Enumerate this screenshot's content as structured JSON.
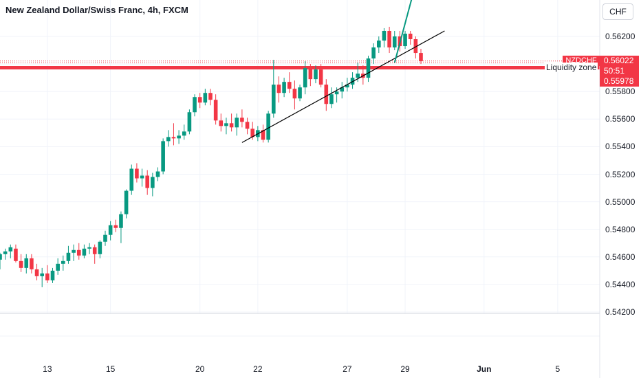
{
  "header": {
    "title": "New Zealand Dollar/Swiss Franc, 4h, FXCM",
    "currency": "CHF"
  },
  "price_tags": {
    "symbol": "NZDCHF",
    "last_price": "0.56022",
    "countdown": "50:51",
    "zone_price": "0.55978"
  },
  "annotations": {
    "liquidity_zone_label": "Liquidity zone"
  },
  "colors": {
    "up": "#089981",
    "down": "#f23645",
    "zone": "#f23645",
    "arrow": "#089981",
    "trendline": "#000000"
  },
  "chart_data": {
    "type": "candlestick",
    "symbol": "NZDCHF",
    "timeframe": "4h",
    "y_ticks": [
      "0.56200",
      "0.56000",
      "0.55800",
      "0.55600",
      "0.55400",
      "0.55200",
      "0.55000",
      "0.54800",
      "0.54600",
      "0.54400",
      "0.54200"
    ],
    "y_tick_values": [
      0.562,
      0.56,
      0.558,
      0.556,
      0.554,
      0.552,
      0.55,
      0.548,
      0.546,
      0.544,
      0.542
    ],
    "ylim": [
      0.5418,
      0.5644
    ],
    "x_ticks": [
      "13",
      "15",
      "20",
      "22",
      "27",
      "29",
      "Jun",
      "5"
    ],
    "x_tick_index": [
      9,
      21,
      38,
      49,
      66,
      77,
      92,
      106
    ],
    "liquidity_zone_price": 0.55978,
    "last_price": 0.56022,
    "trendline": [
      {
        "index": 46,
        "price": 0.5543
      },
      {
        "index": 84.5,
        "price": 0.5624
      }
    ],
    "projection_arrow": [
      {
        "index": 75,
        "price": 0.5601
      },
      {
        "index": 79,
        "price": 0.5658
      }
    ],
    "candles": [
      [
        0.5458,
        0.5463,
        0.5451,
        0.5462
      ],
      [
        0.5462,
        0.5466,
        0.5458,
        0.5464
      ],
      [
        0.5464,
        0.5469,
        0.5459,
        0.5467
      ],
      [
        0.5466,
        0.5469,
        0.5456,
        0.5457
      ],
      [
        0.5457,
        0.5462,
        0.5449,
        0.5452
      ],
      [
        0.5452,
        0.5462,
        0.5448,
        0.5459
      ],
      [
        0.5459,
        0.5462,
        0.5448,
        0.5451
      ],
      [
        0.5451,
        0.5455,
        0.5443,
        0.5446
      ],
      [
        0.5446,
        0.5452,
        0.5438,
        0.5448
      ],
      [
        0.5448,
        0.5454,
        0.5441,
        0.5443
      ],
      [
        0.5443,
        0.5452,
        0.5441,
        0.545
      ],
      [
        0.545,
        0.5459,
        0.5447,
        0.5455
      ],
      [
        0.5455,
        0.5461,
        0.545,
        0.5457
      ],
      [
        0.5457,
        0.5468,
        0.5455,
        0.5463
      ],
      [
        0.5463,
        0.5469,
        0.5457,
        0.5465
      ],
      [
        0.5465,
        0.547,
        0.5458,
        0.5461
      ],
      [
        0.5461,
        0.5469,
        0.5459,
        0.5466
      ],
      [
        0.5466,
        0.547,
        0.5462,
        0.5467
      ],
      [
        0.5467,
        0.5469,
        0.5455,
        0.5462
      ],
      [
        0.5462,
        0.5472,
        0.5459,
        0.5471
      ],
      [
        0.5471,
        0.5479,
        0.5468,
        0.5476
      ],
      [
        0.5476,
        0.5486,
        0.5472,
        0.5483
      ],
      [
        0.5483,
        0.5487,
        0.5478,
        0.5481
      ],
      [
        0.5481,
        0.5493,
        0.547,
        0.5491
      ],
      [
        0.5491,
        0.5509,
        0.5488,
        0.5508
      ],
      [
        0.5508,
        0.5527,
        0.5505,
        0.5524
      ],
      [
        0.5524,
        0.5528,
        0.5514,
        0.5517
      ],
      [
        0.5517,
        0.5524,
        0.5511,
        0.5519
      ],
      [
        0.5519,
        0.5523,
        0.5505,
        0.551
      ],
      [
        0.551,
        0.5521,
        0.5504,
        0.5518
      ],
      [
        0.5518,
        0.5525,
        0.5515,
        0.5522
      ],
      [
        0.5522,
        0.5546,
        0.552,
        0.5544
      ],
      [
        0.5544,
        0.5552,
        0.554,
        0.5547
      ],
      [
        0.5547,
        0.5557,
        0.5541,
        0.5546
      ],
      [
        0.5546,
        0.5552,
        0.5542,
        0.5548
      ],
      [
        0.5548,
        0.5556,
        0.5545,
        0.5551
      ],
      [
        0.5551,
        0.5567,
        0.5549,
        0.5565
      ],
      [
        0.5565,
        0.5578,
        0.5562,
        0.5576
      ],
      [
        0.5576,
        0.5579,
        0.5568,
        0.5572
      ],
      [
        0.5572,
        0.5582,
        0.557,
        0.5579
      ],
      [
        0.5579,
        0.5582,
        0.557,
        0.5574
      ],
      [
        0.5574,
        0.5578,
        0.5556,
        0.5559
      ],
      [
        0.5559,
        0.5564,
        0.5551,
        0.5555
      ],
      [
        0.5555,
        0.5561,
        0.5549,
        0.5557
      ],
      [
        0.5557,
        0.5564,
        0.5551,
        0.5554
      ],
      [
        0.5554,
        0.5564,
        0.5548,
        0.5561
      ],
      [
        0.5561,
        0.5567,
        0.5554,
        0.5558
      ],
      [
        0.5558,
        0.5561,
        0.5549,
        0.5553
      ],
      [
        0.5553,
        0.5558,
        0.5545,
        0.5547
      ],
      [
        0.5547,
        0.5555,
        0.5544,
        0.5552
      ],
      [
        0.5552,
        0.5556,
        0.5543,
        0.5545
      ],
      [
        0.5545,
        0.5566,
        0.5543,
        0.5564
      ],
      [
        0.5564,
        0.5603,
        0.5561,
        0.5585
      ],
      [
        0.5585,
        0.5591,
        0.5572,
        0.5579
      ],
      [
        0.5579,
        0.559,
        0.5576,
        0.5587
      ],
      [
        0.5587,
        0.5594,
        0.5579,
        0.5582
      ],
      [
        0.5582,
        0.5588,
        0.5567,
        0.5575
      ],
      [
        0.5575,
        0.5585,
        0.5573,
        0.5583
      ],
      [
        0.5583,
        0.5602,
        0.5578,
        0.5597
      ],
      [
        0.5597,
        0.56,
        0.5584,
        0.5589
      ],
      [
        0.5589,
        0.5599,
        0.5586,
        0.5596
      ],
      [
        0.5596,
        0.56,
        0.5583,
        0.5585
      ],
      [
        0.5585,
        0.5589,
        0.5566,
        0.5571
      ],
      [
        0.5571,
        0.5583,
        0.5568,
        0.5578
      ],
      [
        0.5578,
        0.5583,
        0.5572,
        0.558
      ],
      [
        0.558,
        0.5587,
        0.5575,
        0.5583
      ],
      [
        0.5583,
        0.559,
        0.558,
        0.5585
      ],
      [
        0.5585,
        0.5594,
        0.5582,
        0.559
      ],
      [
        0.559,
        0.5601,
        0.5587,
        0.5593
      ],
      [
        0.5593,
        0.5599,
        0.5585,
        0.559
      ],
      [
        0.559,
        0.5606,
        0.5587,
        0.5604
      ],
      [
        0.5604,
        0.5615,
        0.56,
        0.5612
      ],
      [
        0.5612,
        0.562,
        0.5608,
        0.5617
      ],
      [
        0.5617,
        0.5626,
        0.5612,
        0.5624
      ],
      [
        0.5624,
        0.5627,
        0.5608,
        0.5612
      ],
      [
        0.5612,
        0.5624,
        0.561,
        0.562
      ],
      [
        0.562,
        0.5624,
        0.5609,
        0.5613
      ],
      [
        0.5613,
        0.5624,
        0.5611,
        0.5622
      ],
      [
        0.5622,
        0.5624,
        0.5614,
        0.5618
      ],
      [
        0.5618,
        0.562,
        0.5604,
        0.5608
      ],
      [
        0.5608,
        0.5611,
        0.56,
        0.5602
      ]
    ]
  }
}
